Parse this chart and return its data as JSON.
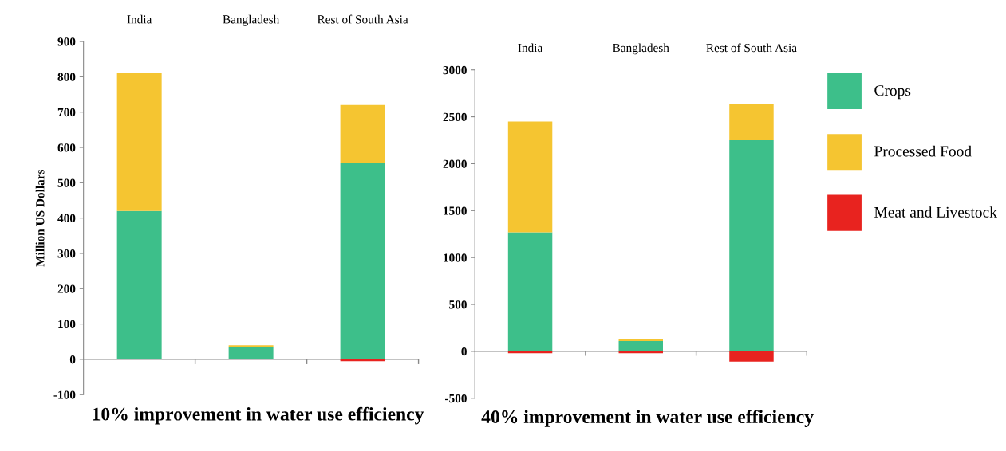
{
  "chart_data": [
    {
      "type": "bar",
      "stacked": true,
      "title": "10% improvement in water use efficiency",
      "ylabel": "Million US Dollars",
      "categories": [
        "India",
        "Bangladesh",
        "Rest of South Asia"
      ],
      "series": [
        {
          "color": "#3dbf8a",
          "values": [
            420,
            35,
            555
          ]
        },
        {
          "color": "#f5c531",
          "values": [
            390,
            5,
            165
          ]
        },
        {
          "color": "#e8231f",
          "values": [
            0,
            0,
            -5
          ]
        }
      ],
      "ylim": [
        -100,
        900
      ],
      "yticks": [
        -100,
        0,
        100,
        200,
        300,
        400,
        500,
        600,
        700,
        800,
        900
      ],
      "legend": false
    },
    {
      "type": "bar",
      "stacked": true,
      "title": "40% improvement in water use efficiency",
      "categories": [
        "India",
        "Bangladesh",
        "Rest of South Asia"
      ],
      "series": [
        {
          "name": "Crops",
          "color": "#3dbf8a",
          "values": [
            1270,
            110,
            2250
          ]
        },
        {
          "name": "Processed Food",
          "color": "#f5c531",
          "values": [
            1180,
            20,
            390
          ]
        },
        {
          "name": "Meat and Livestock",
          "color": "#e8231f",
          "values": [
            -20,
            -20,
            -110
          ]
        }
      ],
      "ylim": [
        -500,
        3000
      ],
      "yticks": [
        -500,
        0,
        500,
        1000,
        1500,
        2000,
        2500,
        3000
      ],
      "legend": "right"
    }
  ]
}
